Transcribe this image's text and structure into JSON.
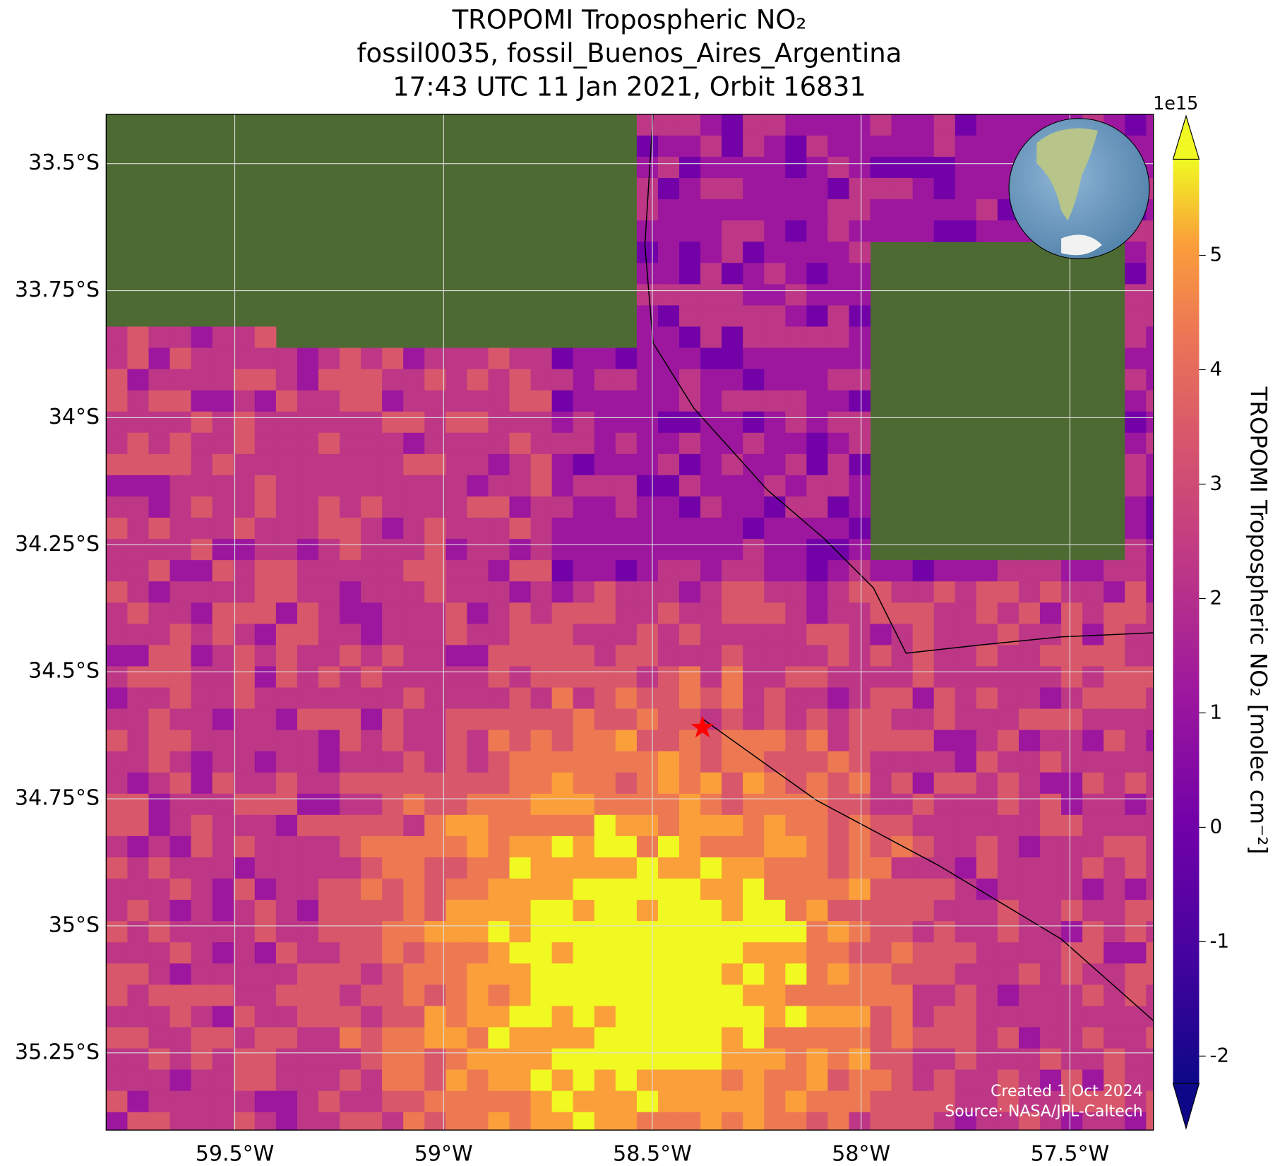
{
  "chart_data": {
    "type": "map",
    "title_lines": [
      "TROPOMI Tropospheric NO₂",
      "fossil0035, fossil_Buenos_Aires_Argentina",
      "17:43 UTC 11 Jan 2021, Orbit 16831"
    ],
    "xlim": [
      -59.808,
      -57.3
    ],
    "ylim": [
      -35.402,
      -33.403
    ],
    "xticks": [
      {
        "value": -59.5,
        "label": "59.5°W"
      },
      {
        "value": -59,
        "label": "59°W"
      },
      {
        "value": -58.5,
        "label": "58.5°W"
      },
      {
        "value": -58,
        "label": "58°W"
      },
      {
        "value": -57.5,
        "label": "57.5°W"
      }
    ],
    "yticks": [
      {
        "value": -33.5,
        "label": "33.5°S"
      },
      {
        "value": -33.75,
        "label": "33.75°S"
      },
      {
        "value": -34,
        "label": "34°S"
      },
      {
        "value": -34.25,
        "label": "34.25°S"
      },
      {
        "value": -34.5,
        "label": "34.5°S"
      },
      {
        "value": -34.75,
        "label": "34.75°S"
      },
      {
        "value": -35,
        "label": "35°S"
      },
      {
        "value": -35.25,
        "label": "35.25°S"
      }
    ],
    "grid": true,
    "site": {
      "lon": -58.38,
      "lat": -34.61,
      "color": "#ff0000"
    },
    "colorbar": {
      "label": "TROPOMI Tropospheric NO₂ [molec cm⁻²]",
      "exponent": "1e15",
      "lim": [
        -2.24,
        5.84
      ],
      "ticks": [
        -2,
        -1,
        0,
        1,
        2,
        3,
        4,
        5
      ],
      "colormap": "plasma"
    },
    "credits": [
      "Created 1 Oct 2024",
      "Source: NASA/JPL-Caltech"
    ]
  }
}
